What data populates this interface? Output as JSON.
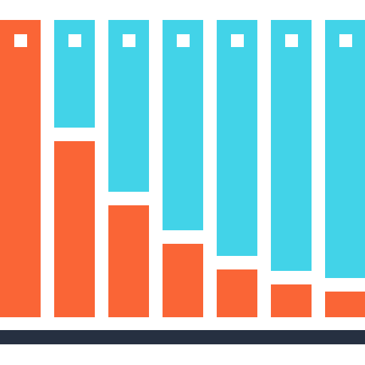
{
  "colors": {
    "top": "#42D3E8",
    "bottom": "#FA6536",
    "marker": "#FFFFFF",
    "baseline": "#263041",
    "background": "#FFFFFF"
  },
  "columns": [
    {
      "fill_fraction": 1.0
    },
    {
      "fill_fraction": 0.593
    },
    {
      "fill_fraction": 0.376
    },
    {
      "fill_fraction": 0.247
    },
    {
      "fill_fraction": 0.161
    },
    {
      "fill_fraction": 0.11
    },
    {
      "fill_fraction": 0.087
    }
  ]
}
